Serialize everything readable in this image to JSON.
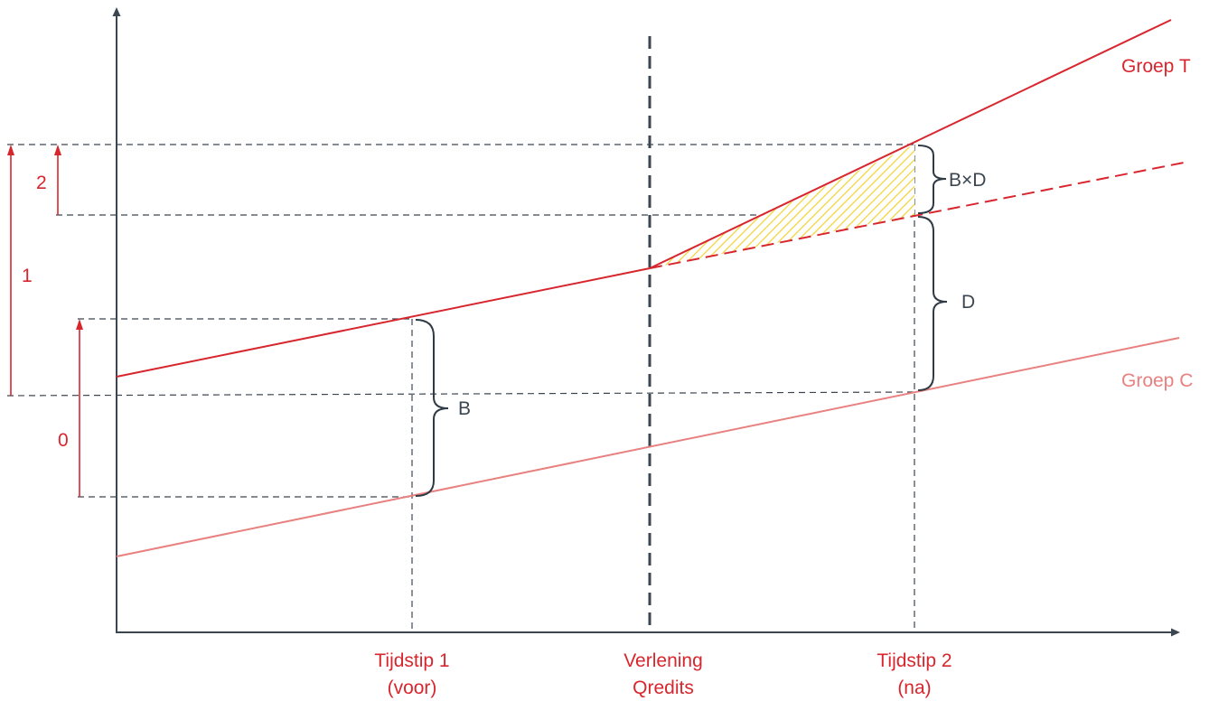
{
  "colors": {
    "group_t": "#d8262e",
    "group_c": "#e8817f",
    "axis": "#3c4650",
    "guide": "#3c4650",
    "hatch": "#f2d43a"
  },
  "labels": {
    "group_t": "Groep T",
    "group_c": "Groep C",
    "arrow_0": "0",
    "arrow_1": "1",
    "arrow_2": "2",
    "brace_b": "B",
    "brace_d": "D",
    "brace_bxd": "B×D"
  },
  "x_axis": {
    "tick_1": [
      "Tijdstip 1",
      "(voor)"
    ],
    "tick_mid": [
      "Verlening",
      "Qredits"
    ],
    "tick_2": [
      "Tijdstip 2",
      "(na)"
    ]
  }
}
